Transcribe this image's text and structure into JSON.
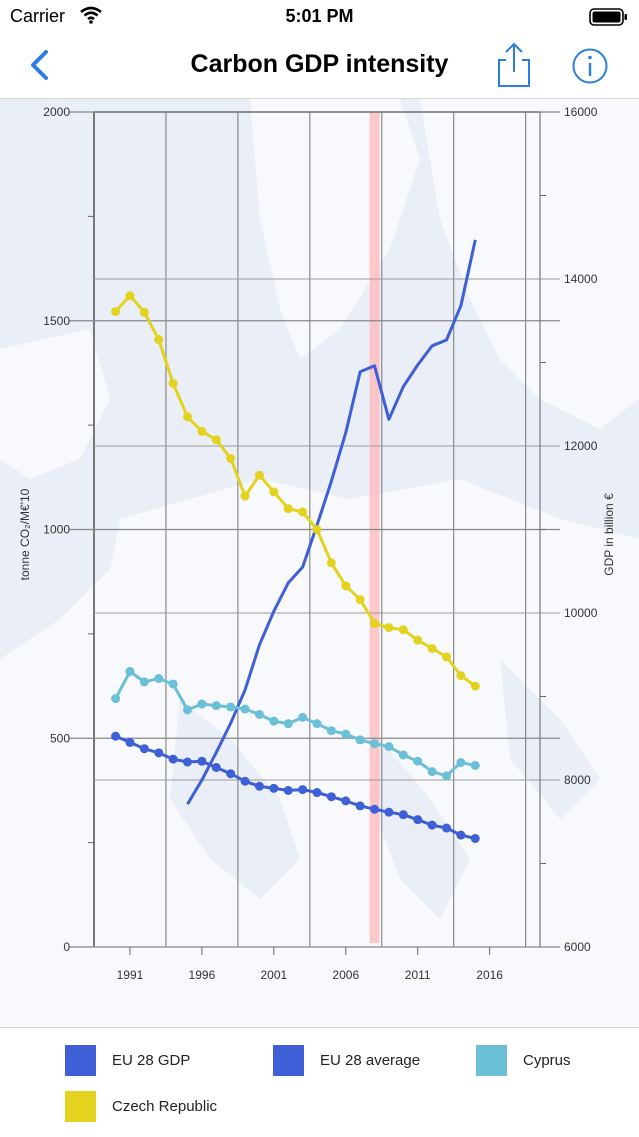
{
  "status_bar": {
    "carrier": "Carrier",
    "time": "5:01 PM"
  },
  "nav": {
    "title": "Carbon GDP intensity"
  },
  "colors": {
    "accent": "#2a7de1",
    "eu_gdp": "#3f5fd6",
    "eu_avg": "#3f5fd6",
    "cyprus": "#6bbfd6",
    "czech": "#e3d21e",
    "highlight": "#ffb3b3"
  },
  "legend": [
    {
      "label": "EU 28 GDP",
      "color": "#3f5fd6"
    },
    {
      "label": "EU 28 average",
      "color": "#3f5fd6"
    },
    {
      "label": "Cyprus",
      "color": "#6bbfd6"
    },
    {
      "label": "Czech Republic",
      "color": "#e3d21e"
    }
  ],
  "chart_data": {
    "type": "line",
    "title": "Carbon GDP intensity",
    "ylabel_left": "tonne CO₂/M€'10",
    "ylabel_right": "GDP in billion €",
    "ylim_left": [
      0,
      2000
    ],
    "ylim_right": [
      6000,
      16000
    ],
    "xlim": [
      1988.5,
      2019.5
    ],
    "x_ticks": [
      "1991",
      "1996",
      "2001",
      "2006",
      "2011",
      "2016"
    ],
    "y_ticks_left": [
      "0",
      "500",
      "1000",
      "1500",
      "2000"
    ],
    "y_ticks_right": [
      "6000",
      "8000",
      "10000",
      "12000",
      "14000",
      "16000"
    ],
    "highlight_year": 2008,
    "grid": true,
    "series": [
      {
        "name": "EU 28 GDP",
        "axis": "right",
        "markers": false,
        "x": [
          1995,
          1996,
          1997,
          1998,
          1999,
          2000,
          2001,
          2002,
          2003,
          2004,
          2005,
          2006,
          2007,
          2008,
          2009,
          2010,
          2011,
          2012,
          2013,
          2014,
          2015
        ],
        "values": [
          7710,
          8000,
          8330,
          8680,
          9080,
          9620,
          10020,
          10360,
          10550,
          11050,
          11580,
          12160,
          12890,
          12960,
          12320,
          12710,
          12970,
          13200,
          13270,
          13680,
          14470
        ]
      },
      {
        "name": "EU 28 average",
        "axis": "left",
        "markers": true,
        "x": [
          1990,
          1991,
          1992,
          1993,
          1994,
          1995,
          1996,
          1997,
          1998,
          1999,
          2000,
          2001,
          2002,
          2003,
          2004,
          2005,
          2006,
          2007,
          2008,
          2009,
          2010,
          2011,
          2012,
          2013,
          2014,
          2015
        ],
        "values": [
          505,
          490,
          475,
          465,
          450,
          443,
          445,
          430,
          415,
          397,
          385,
          380,
          375,
          377,
          370,
          360,
          350,
          338,
          330,
          323,
          317,
          305,
          292,
          285,
          268,
          260
        ]
      },
      {
        "name": "Cyprus",
        "axis": "left",
        "markers": true,
        "x": [
          1990,
          1991,
          1992,
          1993,
          1994,
          1995,
          1996,
          1997,
          1998,
          1999,
          2000,
          2001,
          2002,
          2003,
          2004,
          2005,
          2006,
          2007,
          2008,
          2009,
          2010,
          2011,
          2012,
          2013,
          2014,
          2015
        ],
        "values": [
          595,
          660,
          635,
          643,
          630,
          568,
          582,
          578,
          575,
          570,
          557,
          541,
          535,
          550,
          535,
          518,
          510,
          496,
          487,
          480,
          460,
          445,
          420,
          410,
          442,
          435
        ]
      },
      {
        "name": "Czech Republic",
        "axis": "left",
        "markers": true,
        "x": [
          1990,
          1991,
          1992,
          1993,
          1994,
          1995,
          1996,
          1997,
          1998,
          1999,
          2000,
          2001,
          2002,
          2003,
          2004,
          2005,
          2006,
          2007,
          2008,
          2009,
          2010,
          2011,
          2012,
          2013,
          2014,
          2015
        ],
        "values": [
          1522,
          1560,
          1520,
          1455,
          1350,
          1270,
          1235,
          1215,
          1170,
          1080,
          1130,
          1090,
          1050,
          1042,
          1000,
          920,
          865,
          832,
          775,
          765,
          760,
          735,
          715,
          695,
          650,
          625
        ]
      }
    ]
  }
}
